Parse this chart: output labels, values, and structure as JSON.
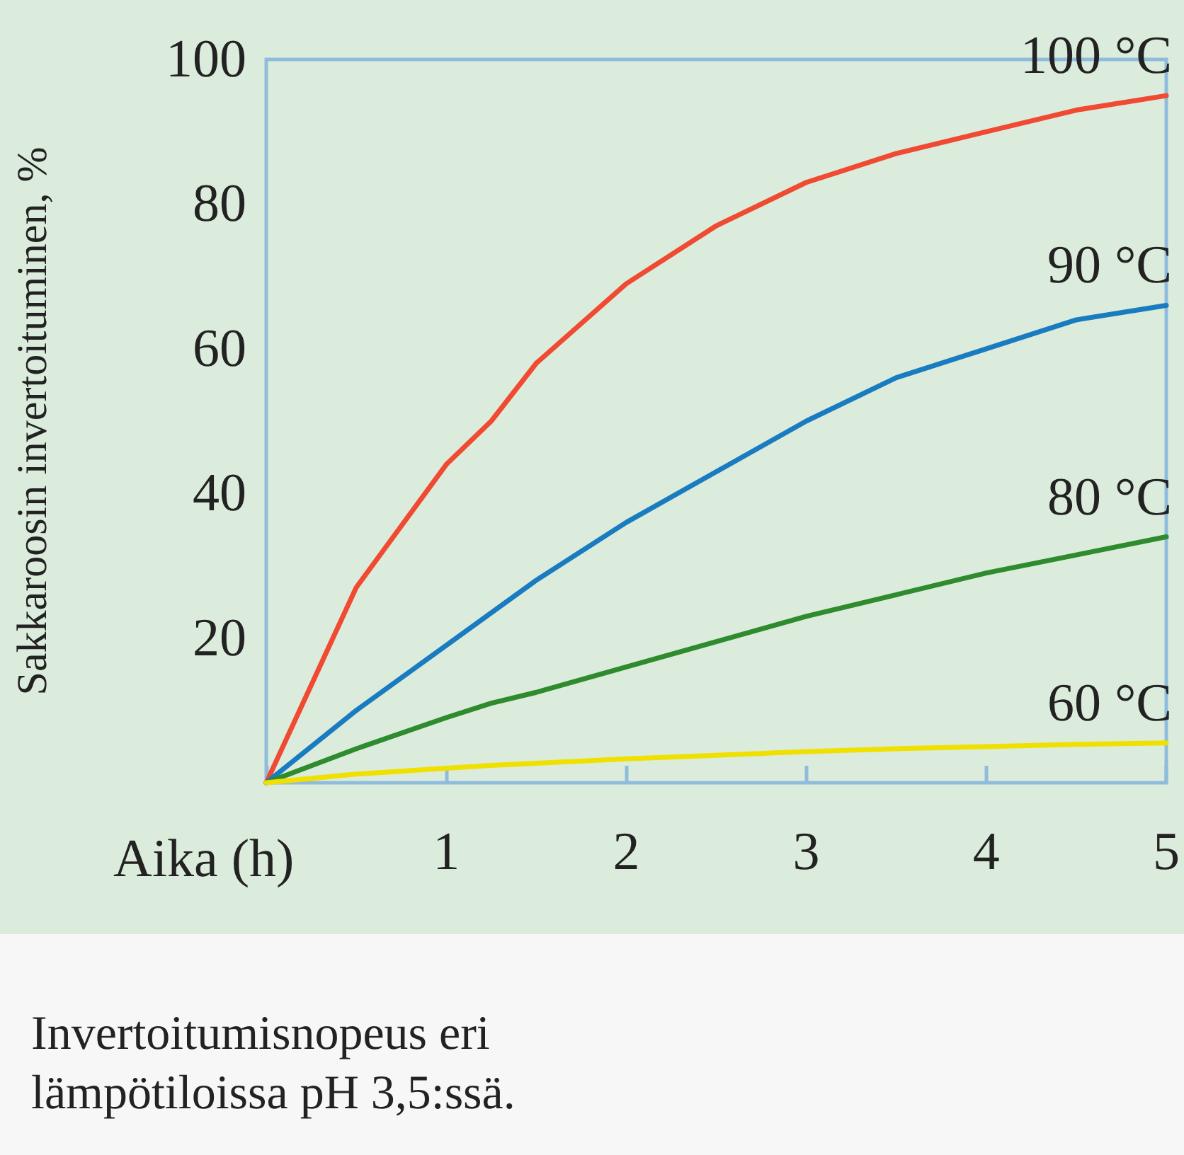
{
  "chart_data": {
    "type": "line",
    "xlabel": "Aika (h)",
    "ylabel": "Sakkaroosin invertoituminen, %",
    "annotations": [
      "Invertoitumisnopeus eri lämpötiloissa pH 3,5:ssä."
    ],
    "x": [
      0,
      0.5,
      1,
      1.25,
      1.5,
      2,
      2.5,
      3,
      3.5,
      4,
      4.5,
      5
    ],
    "xlim": [
      0,
      5
    ],
    "xticks": [
      {
        "value": 0,
        "label": null
      },
      1,
      2,
      3,
      4,
      5
    ],
    "ylim": [
      0,
      100
    ],
    "yticks": [
      20,
      40,
      60,
      80,
      100
    ],
    "grid": false,
    "legend": false,
    "marker": "none",
    "line_style": "solid",
    "series": [
      {
        "name": "100 °C",
        "color": "#f04a32",
        "values": [
          0,
          27,
          44,
          50,
          58,
          69,
          77,
          83,
          87,
          90,
          93,
          95
        ]
      },
      {
        "name": "90 °C",
        "color": "#1a7cc0",
        "values": [
          0,
          10,
          19,
          23.5,
          28,
          36,
          43,
          50,
          56,
          60,
          64,
          66
        ]
      },
      {
        "name": "80 °C",
        "color": "#2e8b2e",
        "values": [
          0,
          4.7,
          9,
          11,
          12.5,
          16,
          19.5,
          23,
          26,
          29,
          31.5,
          34
        ]
      },
      {
        "name": "60 °C",
        "color": "#f0e000",
        "values": [
          0,
          1.2,
          2,
          2.4,
          2.7,
          3.3,
          3.8,
          4.3,
          4.7,
          5,
          5.3,
          5.5
        ]
      }
    ]
  }
}
